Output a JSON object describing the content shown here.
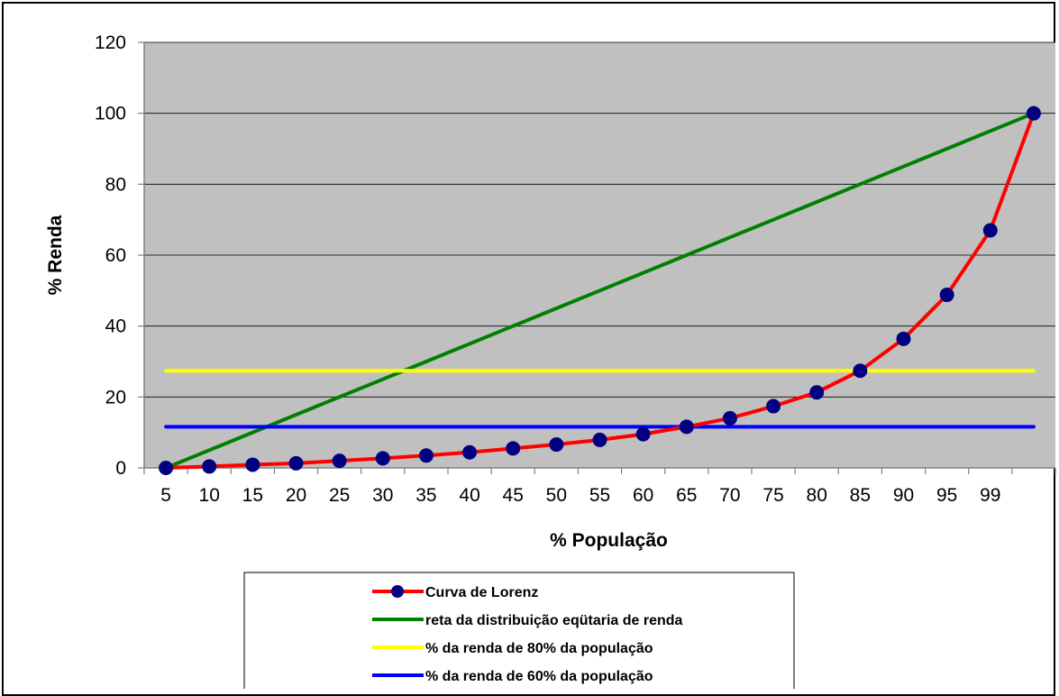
{
  "chart_data": {
    "type": "line",
    "title": "",
    "xlabel": "% População",
    "ylabel": "% Renda",
    "categories": [
      "5",
      "10",
      "15",
      "20",
      "25",
      "30",
      "35",
      "40",
      "45",
      "50",
      "55",
      "60",
      "65",
      "70",
      "75",
      "80",
      "85",
      "90",
      "95",
      "99",
      ""
    ],
    "ylim": [
      0,
      120
    ],
    "yticks": [
      0,
      20,
      40,
      60,
      80,
      100,
      120
    ],
    "grid": true,
    "plot_background": "#c0c0c0",
    "legend_position": "bottom",
    "series": [
      {
        "name": "Curva de Lorenz",
        "color": "#ff0000",
        "marker_color": "#000080",
        "marker": "circle",
        "values": [
          0,
          0.4,
          0.9,
          1.3,
          2.0,
          2.7,
          3.5,
          4.4,
          5.5,
          6.6,
          7.9,
          9.5,
          11.6,
          14.0,
          17.4,
          21.3,
          27.4,
          36.4,
          48.8,
          67.0,
          100
        ]
      },
      {
        "name": "reta da distribuição eqütaria de renda",
        "color": "#008000",
        "values": [
          0,
          5,
          10,
          15,
          20,
          25,
          30,
          35,
          40,
          45,
          50,
          55,
          60,
          65,
          70,
          75,
          80,
          85,
          90,
          95,
          100
        ]
      },
      {
        "name": "% da renda de 80% da população",
        "color": "#ffff00",
        "values": [
          27.4,
          27.4,
          27.4,
          27.4,
          27.4,
          27.4,
          27.4,
          27.4,
          27.4,
          27.4,
          27.4,
          27.4,
          27.4,
          27.4,
          27.4,
          27.4,
          27.4,
          27.4,
          27.4,
          27.4,
          27.4
        ]
      },
      {
        "name": "% da renda de 60% da população",
        "color": "#0000ff",
        "values": [
          11.6,
          11.6,
          11.6,
          11.6,
          11.6,
          11.6,
          11.6,
          11.6,
          11.6,
          11.6,
          11.6,
          11.6,
          11.6,
          11.6,
          11.6,
          11.6,
          11.6,
          11.6,
          11.6,
          11.6,
          11.6
        ]
      }
    ]
  }
}
